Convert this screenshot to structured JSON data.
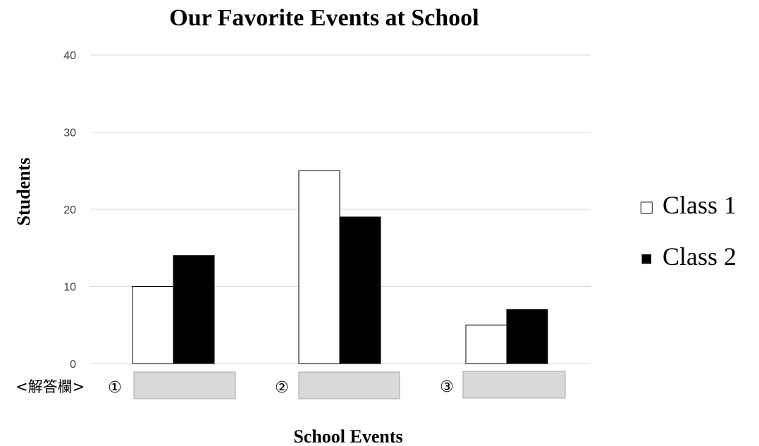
{
  "chart_data": {
    "type": "bar",
    "title": "Our Favorite Events at School",
    "xlabel": "School Events",
    "ylabel": "Students",
    "ylim": [
      0,
      40
    ],
    "yticks": [
      0,
      10,
      20,
      30,
      40
    ],
    "grid": true,
    "legend_position": "right",
    "categories": [
      "①",
      "②",
      "③"
    ],
    "series": [
      {
        "name": "Class 1",
        "values": [
          10,
          25,
          5
        ],
        "color": "#ffffff"
      },
      {
        "name": "Class 2",
        "values": [
          14,
          19,
          7
        ],
        "color": "#000000"
      }
    ]
  },
  "answer_row": {
    "label": "<解答欄>",
    "slots": [
      "①",
      "②",
      "③"
    ]
  },
  "legend": {
    "items": [
      {
        "symbol": "□",
        "text": "Class 1"
      },
      {
        "symbol": "■",
        "text": "Class 2"
      }
    ]
  },
  "colors": {
    "gridline": "#d9d9d9",
    "answer_box_fill": "#d9d9d9",
    "answer_box_stroke": "#a6a6a6",
    "bar_stroke": "#000000"
  }
}
